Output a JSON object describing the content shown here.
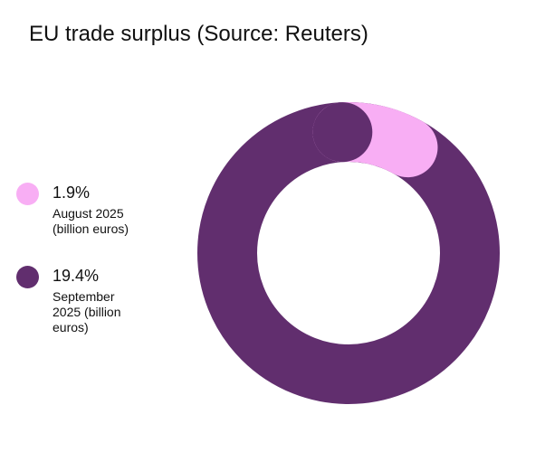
{
  "chart_data": {
    "type": "pie",
    "title": "EU trade surplus (Source: Reuters)",
    "categories": [
      "August 2025 (billion euros)",
      "September 2025 (billion euros)"
    ],
    "values": [
      1.9,
      19.4
    ],
    "value_labels": [
      "1.9%",
      "19.4%"
    ],
    "colors": [
      "#f8aef4",
      "#612e6e"
    ],
    "style": "donut",
    "legend_position": "left"
  }
}
